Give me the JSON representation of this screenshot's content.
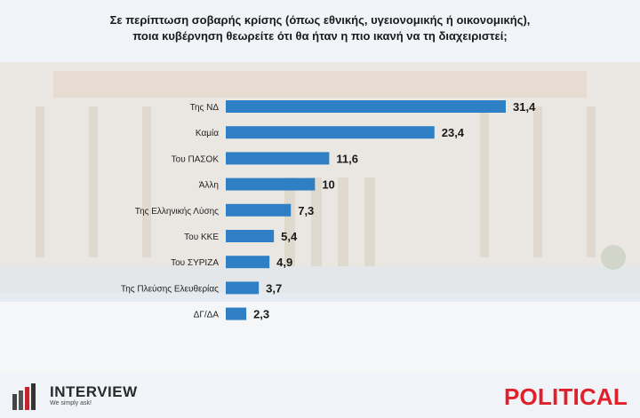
{
  "title_line1": "Σε περίπτωση σοβαρής κρίσης (όπως εθνικής, υγειονομικής ή οικονομικής),",
  "title_line2": "ποια κυβέρνηση θεωρείτε ότι θα ήταν η πιο ικανή να τη διαχειριστεί;",
  "bar_color": "#2e7fc4",
  "chart_data": {
    "type": "bar",
    "orientation": "horizontal",
    "title": "Σε περίπτωση σοβαρής κρίσης (όπως εθνικής, υγειονομικής ή οικονομικής), ποια κυβέρνηση θεωρείτε ότι θα ήταν η πιο ικανή να τη διαχειριστεί;",
    "categories": [
      "Της ΝΔ",
      "Καμία",
      "Του ΠΑΣΟΚ",
      "Άλλη",
      "Της Ελληνικής Λύσης",
      "Του ΚΚΕ",
      "Του ΣΥΡΙΖΑ",
      "Της Πλεύσης Ελευθερίας",
      "ΔΓ/ΔΑ"
    ],
    "values": [
      31.4,
      23.4,
      11.6,
      10,
      7.3,
      5.4,
      4.9,
      3.7,
      2.3
    ],
    "value_labels": [
      "31,4",
      "23,4",
      "11,6",
      "10",
      "7,3",
      "5,4",
      "4,9",
      "3,7",
      "2,3"
    ],
    "xlim": [
      0,
      31.4
    ],
    "grid": false,
    "legend": "none"
  },
  "brand": {
    "interview_name": "INTERVIEW",
    "interview_tagline": "We simply ask!",
    "political_name": "POLITICAL"
  }
}
